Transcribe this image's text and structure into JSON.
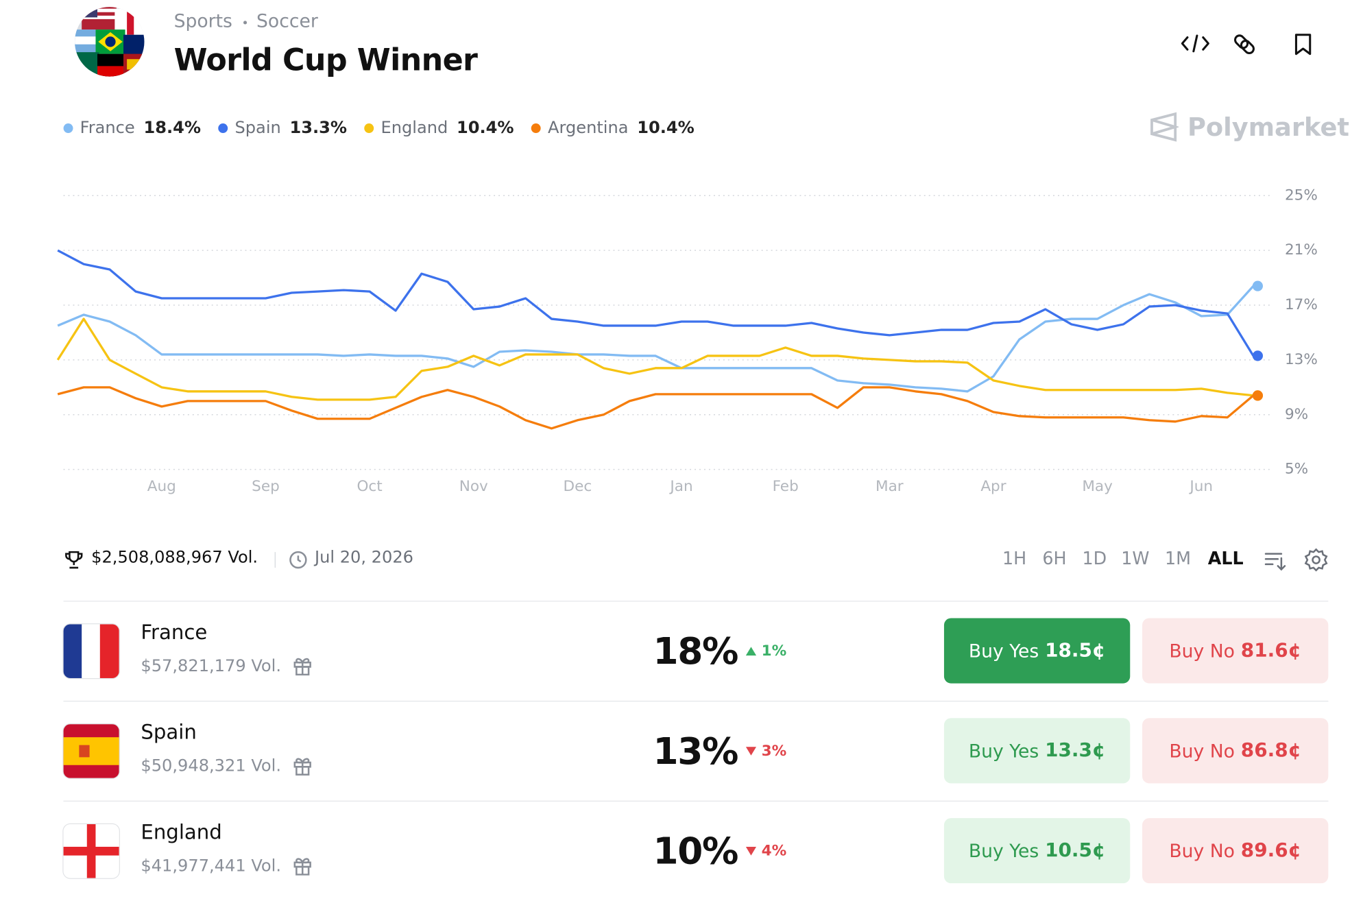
{
  "header": {
    "breadcrumb": [
      "Sports",
      "Soccer"
    ],
    "title": "World Cup Winner"
  },
  "brand": "Polymarket",
  "chart_data": {
    "type": "line",
    "categories": [
      null,
      null,
      null,
      null,
      "Aug",
      null,
      null,
      null,
      "Sep",
      null,
      null,
      null,
      "Oct",
      null,
      null,
      null,
      "Nov",
      null,
      null,
      null,
      "Dec",
      null,
      null,
      null,
      "Jan",
      null,
      null,
      null,
      "Feb",
      null,
      null,
      null,
      "Mar",
      null,
      null,
      null,
      "Apr",
      null,
      null,
      null,
      "May",
      null,
      null,
      null,
      "Jun",
      null,
      null
    ],
    "series": [
      {
        "name": "France",
        "color": "#82bbf3",
        "current": "18.4%",
        "values": [
          15.5,
          16.3,
          15.8,
          14.8,
          13.4,
          13.4,
          13.4,
          13.4,
          13.4,
          13.4,
          13.4,
          13.3,
          13.4,
          13.3,
          13.3,
          13.1,
          12.5,
          13.6,
          13.7,
          13.6,
          13.4,
          13.4,
          13.3,
          13.3,
          12.4,
          12.4,
          12.4,
          12.4,
          12.4,
          12.4,
          11.5,
          11.3,
          11.2,
          11.0,
          10.9,
          10.7,
          11.8,
          14.5,
          15.8,
          16.0,
          16.0,
          17.0,
          17.8,
          17.2,
          16.2,
          16.3,
          18.4
        ]
      },
      {
        "name": "Spain",
        "color": "#3d72ec",
        "current": "13.3%",
        "values": [
          21.0,
          20.0,
          19.6,
          18.0,
          17.5,
          17.5,
          17.5,
          17.5,
          17.5,
          17.9,
          18.0,
          18.1,
          18.0,
          16.6,
          19.3,
          18.7,
          16.7,
          16.9,
          17.5,
          16.0,
          15.8,
          15.5,
          15.5,
          15.5,
          15.8,
          15.8,
          15.5,
          15.5,
          15.5,
          15.7,
          15.3,
          15.0,
          14.8,
          15.0,
          15.2,
          15.2,
          15.7,
          15.8,
          16.7,
          15.6,
          15.2,
          15.6,
          16.9,
          17.0,
          16.6,
          16.4,
          13.3
        ]
      },
      {
        "name": "England",
        "color": "#f6c313",
        "current": "10.4%",
        "values": [
          13.0,
          16.0,
          13.0,
          12.0,
          11.0,
          10.7,
          10.7,
          10.7,
          10.7,
          10.3,
          10.1,
          10.1,
          10.1,
          10.3,
          12.2,
          12.5,
          13.3,
          12.6,
          13.4,
          13.4,
          13.4,
          12.4,
          12.0,
          12.4,
          12.4,
          13.3,
          13.3,
          13.3,
          13.9,
          13.3,
          13.3,
          13.1,
          13.0,
          12.9,
          12.9,
          12.8,
          11.5,
          11.1,
          10.8,
          10.8,
          10.8,
          10.8,
          10.8,
          10.8,
          10.9,
          10.6,
          10.4
        ]
      },
      {
        "name": "Argentina",
        "color": "#f57d0c",
        "current": "10.4%",
        "values": [
          10.5,
          11.0,
          11.0,
          10.2,
          9.6,
          10.0,
          10.0,
          10.0,
          10.0,
          9.3,
          8.7,
          8.7,
          8.7,
          9.5,
          10.3,
          10.8,
          10.3,
          9.6,
          8.6,
          8.0,
          8.6,
          9.0,
          10.0,
          10.5,
          10.5,
          10.5,
          10.5,
          10.5,
          10.5,
          10.5,
          9.5,
          11.0,
          11.0,
          10.7,
          10.5,
          10.0,
          9.2,
          8.9,
          8.8,
          8.8,
          8.8,
          8.8,
          8.6,
          8.5,
          8.9,
          8.8,
          10.4
        ]
      }
    ],
    "ylim": [
      5,
      25
    ],
    "yticks": [
      {
        "value": 5,
        "label": "5%"
      },
      {
        "value": 9,
        "label": "9%"
      },
      {
        "value": 13,
        "label": "13%"
      },
      {
        "value": 17,
        "label": "17%"
      },
      {
        "value": 21,
        "label": "21%"
      },
      {
        "value": 25,
        "label": "25%"
      }
    ],
    "grid": true
  },
  "summary": {
    "volume": "$2,508,088,967 Vol.",
    "end_date": "Jul 20, 2026"
  },
  "ranges": {
    "options": [
      "1H",
      "6H",
      "1D",
      "1W",
      "1M",
      "ALL"
    ],
    "active": "ALL"
  },
  "outcomes": [
    {
      "name": "France",
      "volume": "$57,821,179 Vol.",
      "chance": "18%",
      "change": "1%",
      "direction": "up",
      "yes_label": "Buy Yes",
      "yes_price": "18.5¢",
      "no_label": "Buy No",
      "no_price": "81.6¢"
    },
    {
      "name": "Spain",
      "volume": "$50,948,321 Vol.",
      "chance": "13%",
      "change": "3%",
      "direction": "down",
      "yes_label": "Buy Yes",
      "yes_price": "13.3¢",
      "no_label": "Buy No",
      "no_price": "86.8¢"
    },
    {
      "name": "England",
      "volume": "$41,977,441 Vol.",
      "chance": "10%",
      "change": "4%",
      "direction": "down",
      "yes_label": "Buy Yes",
      "yes_price": "10.5¢",
      "no_label": "Buy No",
      "no_price": "89.6¢"
    }
  ]
}
